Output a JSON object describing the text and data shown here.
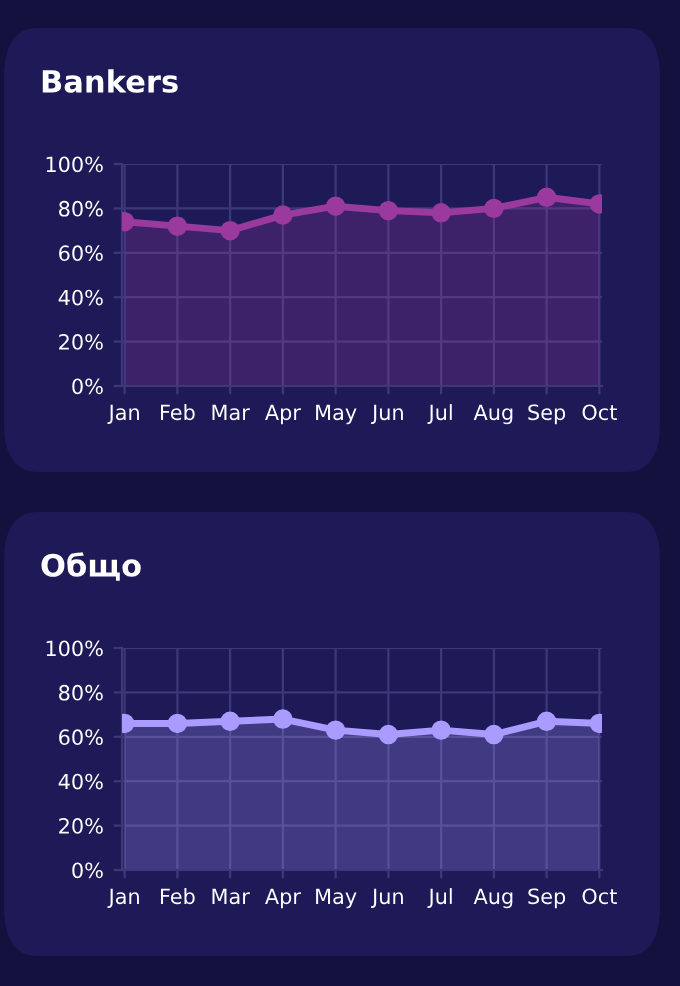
{
  "chart_data": [
    {
      "type": "area",
      "title": "Bankers",
      "categories": [
        "Jan",
        "Feb",
        "Mar",
        "Apr",
        "May",
        "Jun",
        "Jul",
        "Aug",
        "Sep",
        "Oct"
      ],
      "series": [
        {
          "color": "#9b3a9e",
          "values": [
            74,
            72,
            70,
            77,
            81,
            79,
            78,
            80,
            85,
            82
          ]
        }
      ],
      "ylim": [
        0,
        100
      ],
      "yticks": [
        {
          "value": 0,
          "label": "0%"
        },
        {
          "value": 20,
          "label": "20%"
        },
        {
          "value": 40,
          "label": "40%"
        },
        {
          "value": 60,
          "label": "60%"
        },
        {
          "value": 80,
          "label": "80%"
        },
        {
          "value": 100,
          "label": "100%"
        }
      ],
      "grid": true,
      "marker": "circle",
      "line_style": "solid"
    },
    {
      "type": "area",
      "title": "Общо",
      "categories": [
        "Jan",
        "Feb",
        "Mar",
        "Apr",
        "May",
        "Jun",
        "Jul",
        "Aug",
        "Sep",
        "Oct"
      ],
      "series": [
        {
          "color": "#a99bff",
          "values": [
            66,
            66,
            67,
            68,
            63,
            61,
            63,
            61,
            67,
            66
          ]
        }
      ],
      "ylim": [
        0,
        100
      ],
      "yticks": [
        {
          "value": 0,
          "label": "0%"
        },
        {
          "value": 20,
          "label": "20%"
        },
        {
          "value": 40,
          "label": "40%"
        },
        {
          "value": 60,
          "label": "60%"
        },
        {
          "value": 80,
          "label": "80%"
        },
        {
          "value": 100,
          "label": "100%"
        }
      ],
      "grid": true,
      "marker": "circle",
      "line_style": "solid"
    }
  ]
}
